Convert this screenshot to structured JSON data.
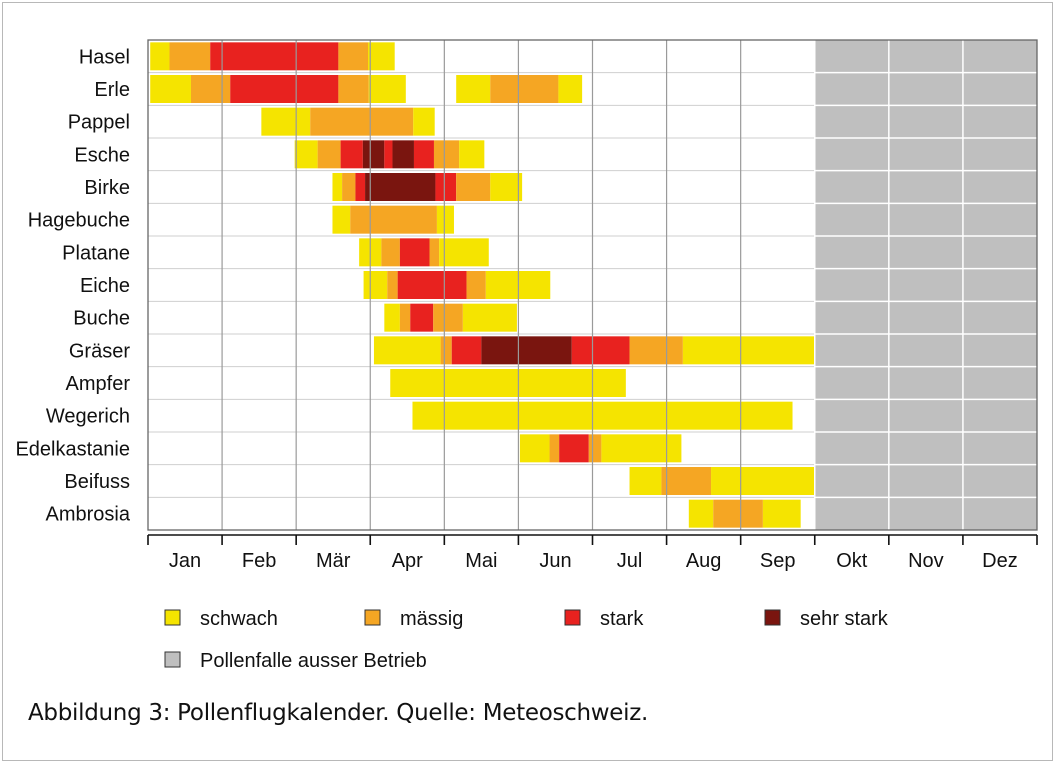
{
  "caption": "Abbildung 3: Pollenflugkalender. Quelle: Meteoschweiz.",
  "chart_data": {
    "type": "bar",
    "orientation": "horizontal-timeline",
    "x_unit": "months",
    "xlim": [
      0,
      12
    ],
    "months": [
      "Jan",
      "Feb",
      "Mär",
      "Apr",
      "Mai",
      "Jun",
      "Jul",
      "Aug",
      "Sep",
      "Okt",
      "Nov",
      "Dez"
    ],
    "grid": true,
    "legend_position": "bottom",
    "legend": [
      {
        "key": "schwach",
        "label": "schwach",
        "color": "#f5e400"
      },
      {
        "key": "maessig",
        "label": "mässig",
        "color": "#f5a623"
      },
      {
        "key": "stark",
        "label": "stark",
        "color": "#e8221f"
      },
      {
        "key": "sehr_stark",
        "label": "sehr stark",
        "color": "#7a150f"
      },
      {
        "key": "ausser_betrieb",
        "label": "Pollenfalle ausser Betrieb",
        "color": "#bfbfbf"
      }
    ],
    "inactive_range": [
      9,
      12
    ],
    "rows": [
      {
        "name": "Hasel",
        "segments": [
          [
            0.03,
            0.29,
            "schwach"
          ],
          [
            0.29,
            0.84,
            "maessig"
          ],
          [
            0.84,
            2.57,
            "stark"
          ],
          [
            2.57,
            2.97,
            "maessig"
          ],
          [
            2.97,
            3.33,
            "schwach"
          ]
        ]
      },
      {
        "name": "Erle",
        "segments": [
          [
            0.03,
            0.58,
            "schwach"
          ],
          [
            0.58,
            1.11,
            "maessig"
          ],
          [
            1.11,
            2.57,
            "stark"
          ],
          [
            2.57,
            2.98,
            "maessig"
          ],
          [
            2.98,
            3.48,
            "schwach"
          ],
          [
            4.16,
            4.62,
            "schwach"
          ],
          [
            4.62,
            5.54,
            "maessig"
          ],
          [
            5.54,
            5.86,
            "schwach"
          ]
        ]
      },
      {
        "name": "Pappel",
        "segments": [
          [
            1.53,
            2.19,
            "schwach"
          ],
          [
            2.19,
            3.58,
            "maessig"
          ],
          [
            3.58,
            3.87,
            "schwach"
          ]
        ]
      },
      {
        "name": "Esche",
        "segments": [
          [
            1.98,
            2.29,
            "schwach"
          ],
          [
            2.29,
            2.6,
            "maessig"
          ],
          [
            2.6,
            2.9,
            "stark"
          ],
          [
            2.9,
            3.19,
            "sehr_stark"
          ],
          [
            3.19,
            3.3,
            "stark"
          ],
          [
            3.3,
            3.59,
            "sehr_stark"
          ],
          [
            3.59,
            3.86,
            "stark"
          ],
          [
            3.86,
            4.2,
            "maessig"
          ],
          [
            4.2,
            4.54,
            "schwach"
          ]
        ]
      },
      {
        "name": "Birke",
        "segments": [
          [
            2.49,
            2.62,
            "schwach"
          ],
          [
            2.62,
            2.8,
            "maessig"
          ],
          [
            2.8,
            2.93,
            "stark"
          ],
          [
            2.93,
            3.88,
            "sehr_stark"
          ],
          [
            3.88,
            4.16,
            "stark"
          ],
          [
            4.16,
            4.62,
            "maessig"
          ],
          [
            4.62,
            5.05,
            "schwach"
          ]
        ]
      },
      {
        "name": "Hagebuche",
        "segments": [
          [
            2.49,
            2.73,
            "schwach"
          ],
          [
            2.73,
            3.9,
            "maessig"
          ],
          [
            3.9,
            4.13,
            "schwach"
          ]
        ]
      },
      {
        "name": "Platane",
        "segments": [
          [
            2.85,
            3.15,
            "schwach"
          ],
          [
            3.15,
            3.4,
            "maessig"
          ],
          [
            3.4,
            3.8,
            "stark"
          ],
          [
            3.8,
            3.93,
            "maessig"
          ],
          [
            3.93,
            4.6,
            "schwach"
          ]
        ]
      },
      {
        "name": "Eiche",
        "segments": [
          [
            2.91,
            3.23,
            "schwach"
          ],
          [
            3.23,
            3.37,
            "maessig"
          ],
          [
            3.37,
            4.3,
            "stark"
          ],
          [
            4.3,
            4.56,
            "maessig"
          ],
          [
            4.56,
            5.43,
            "schwach"
          ]
        ]
      },
      {
        "name": "Buche",
        "segments": [
          [
            3.19,
            3.4,
            "schwach"
          ],
          [
            3.4,
            3.54,
            "maessig"
          ],
          [
            3.54,
            3.85,
            "stark"
          ],
          [
            3.85,
            4.25,
            "maessig"
          ],
          [
            4.25,
            4.98,
            "schwach"
          ]
        ]
      },
      {
        "name": "Gräser",
        "segments": [
          [
            3.05,
            3.95,
            "schwach"
          ],
          [
            3.95,
            4.1,
            "maessig"
          ],
          [
            4.1,
            4.5,
            "stark"
          ],
          [
            4.5,
            5.72,
            "sehr_stark"
          ],
          [
            5.72,
            6.5,
            "stark"
          ],
          [
            6.5,
            7.22,
            "maessig"
          ],
          [
            7.22,
            9.0,
            "schwach"
          ]
        ]
      },
      {
        "name": "Ampfer",
        "segments": [
          [
            3.27,
            6.45,
            "schwach"
          ]
        ]
      },
      {
        "name": "Wegerich",
        "segments": [
          [
            3.57,
            8.7,
            "schwach"
          ]
        ]
      },
      {
        "name": "Edelkastanie",
        "segments": [
          [
            5.02,
            5.42,
            "schwach"
          ],
          [
            5.42,
            5.55,
            "maessig"
          ],
          [
            5.55,
            5.95,
            "stark"
          ],
          [
            5.95,
            6.12,
            "maessig"
          ],
          [
            6.12,
            7.2,
            "schwach"
          ]
        ]
      },
      {
        "name": "Beifuss",
        "segments": [
          [
            6.5,
            6.93,
            "schwach"
          ],
          [
            6.93,
            7.6,
            "maessig"
          ],
          [
            7.6,
            9.0,
            "schwach"
          ]
        ]
      },
      {
        "name": "Ambrosia",
        "segments": [
          [
            7.3,
            7.63,
            "schwach"
          ],
          [
            7.63,
            8.3,
            "maessig"
          ],
          [
            8.3,
            8.81,
            "schwach"
          ]
        ]
      }
    ]
  }
}
